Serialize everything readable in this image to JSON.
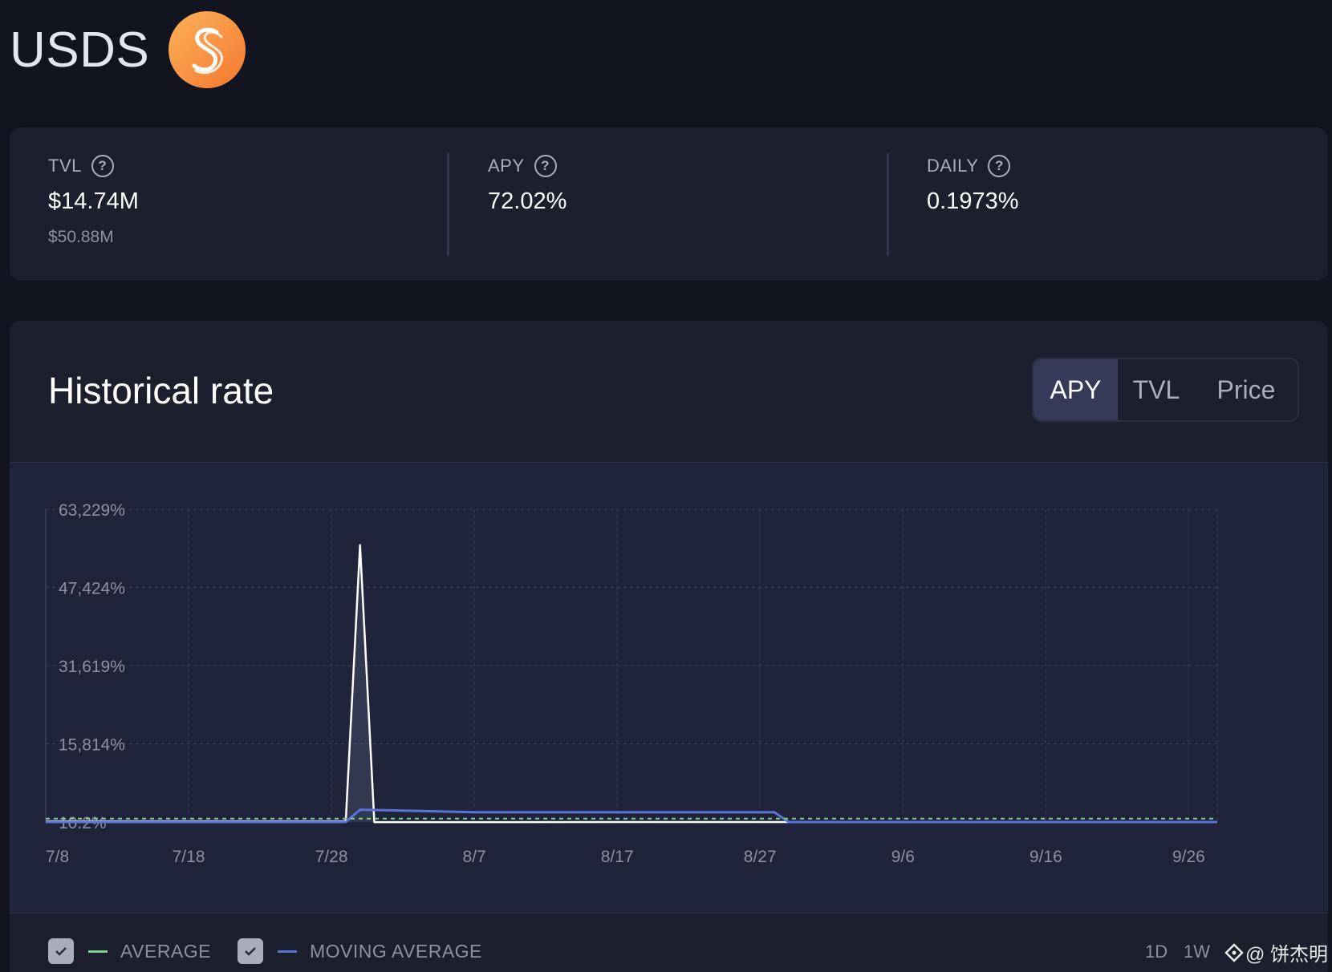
{
  "token": {
    "name": "USDS",
    "logo_icon": "usds-s-logo",
    "logo_gradient": [
      "#fcb25a",
      "#f4782f"
    ]
  },
  "stats": [
    {
      "label": "TVL",
      "value": "$14.74M",
      "sub": "$50.88M"
    },
    {
      "label": "APY",
      "value": "72.02%",
      "sub": ""
    },
    {
      "label": "DAILY",
      "value": "0.1973%",
      "sub": ""
    }
  ],
  "chart_section": {
    "title": "Historical rate",
    "tabs": [
      {
        "label": "APY",
        "active": true
      },
      {
        "label": "TVL",
        "active": false
      },
      {
        "label": "Price",
        "active": false
      }
    ]
  },
  "chart_data": {
    "type": "line",
    "y_unit": "%",
    "ylim": [
      10.2,
      63229
    ],
    "y_ticks": [
      "63,229%",
      "47,424%",
      "31,619%",
      "15,814%",
      "10.2%"
    ],
    "y_tick_values": [
      63229,
      47424,
      31619,
      15814,
      10.2
    ],
    "x_ticks": [
      "7/8",
      "7/18",
      "7/28",
      "8/7",
      "8/17",
      "8/27",
      "9/6",
      "9/16",
      "9/26"
    ],
    "x_range": [
      "7/8",
      "9/28"
    ],
    "grid": true,
    "series": [
      {
        "role": "apy",
        "color": "#ffffff",
        "points": [
          [
            "7/8",
            150
          ],
          [
            "7/29",
            150
          ],
          [
            "7/30",
            56000
          ],
          [
            "7/31",
            0
          ],
          [
            "8/29",
            10
          ],
          [
            "9/28",
            10
          ]
        ]
      },
      {
        "name": "MOVING AVERAGE",
        "color": "#5b72d9",
        "points": [
          [
            "7/8",
            10.2
          ],
          [
            "7/29",
            10.2
          ],
          [
            "7/30",
            2500
          ],
          [
            "8/7",
            2000
          ],
          [
            "8/28",
            2000
          ],
          [
            "8/29",
            10.2
          ],
          [
            "9/28",
            10.2
          ]
        ]
      },
      {
        "name": "AVERAGE",
        "color": "#7ccf8c",
        "dashed": true,
        "points": [
          [
            "7/8",
            700
          ],
          [
            "9/28",
            700
          ]
        ]
      }
    ]
  },
  "legend": {
    "items": [
      {
        "label": "AVERAGE",
        "color": "#7ccf8c",
        "checked": true
      },
      {
        "label": "MOVING AVERAGE",
        "color": "#5b72d9",
        "checked": true
      }
    ],
    "ranges": [
      "1D",
      "1W"
    ]
  },
  "watermark": "@ 饼杰明"
}
